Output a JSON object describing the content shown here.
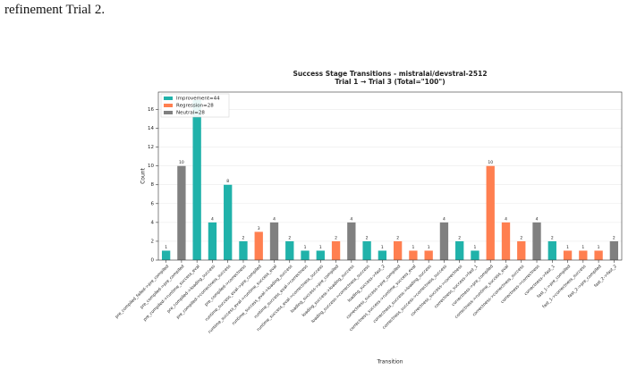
{
  "text_above": "refinement Trial 2.",
  "chart_data": {
    "type": "bar",
    "title": "Success Stage Transitions - mistralai/devstral-2512",
    "subtitle": "Trial 1 → Trial 3 (Total=\"100\")",
    "x_label": "Transition",
    "y_label": "Count",
    "categories": [
      "pre_compiled_failed->pre_compiled",
      "pre_compiled->pre_compiled",
      "pre_compiled->runtime_success_eval",
      "pre_compiled->loading_success",
      "pre_compiled->correctness_success",
      "pre_compiled->correctness",
      "runtime_success_eval->pre_compiled",
      "runtime_success_eval->runtime_success_eval",
      "runtime_success_eval->loading_success",
      "runtime_success_eval->correctness",
      "runtime_success_eval->correctness_success",
      "loading_success->pre_compiled",
      "loading_success->loading_success",
      "loading_success->correctness_success",
      "loading_success->fast_2",
      "correctness_success->pre_compiled",
      "correctness_success->runtime_success_eval",
      "correctness_success->loading_success",
      "correctness_success->correctness_success",
      "correctness_success->correctness",
      "correctness_success->fast_1",
      "correctness->pre_compiled",
      "correctness->runtime_success_eval",
      "correctness->correctness_success",
      "correctness->correctness",
      "correctness->fast_1",
      "fast_1->pre_compiled",
      "fast_1->correctness_success",
      "fast_2->pre_compiled",
      "fast_2->fast_2"
    ],
    "values": [
      1,
      10,
      17,
      4,
      8,
      2,
      3,
      4,
      2,
      1,
      1,
      2,
      4,
      2,
      1,
      2,
      1,
      1,
      4,
      2,
      1,
      10,
      4,
      2,
      4,
      2,
      1,
      1,
      1,
      2
    ],
    "colors": [
      "#20b2aa",
      "#808080",
      "#20b2aa",
      "#20b2aa",
      "#20b2aa",
      "#20b2aa",
      "#ff7f50",
      "#808080",
      "#20b2aa",
      "#20b2aa",
      "#20b2aa",
      "#ff7f50",
      "#808080",
      "#20b2aa",
      "#20b2aa",
      "#ff7f50",
      "#ff7f50",
      "#ff7f50",
      "#808080",
      "#20b2aa",
      "#20b2aa",
      "#ff7f50",
      "#ff7f50",
      "#ff7f50",
      "#808080",
      "#20b2aa",
      "#ff7f50",
      "#ff7f50",
      "#ff7f50",
      "#808080"
    ],
    "legend": [
      {
        "name": "Improvement=44",
        "color": "#20b2aa"
      },
      {
        "name": "Regression=28",
        "color": "#ff7f50"
      },
      {
        "name": "Neutral=28",
        "color": "#808080"
      }
    ],
    "ylim": [
      0,
      17.85
    ],
    "yticks": [
      0,
      2,
      4,
      6,
      8,
      10,
      12,
      14,
      16
    ],
    "grid": true
  }
}
